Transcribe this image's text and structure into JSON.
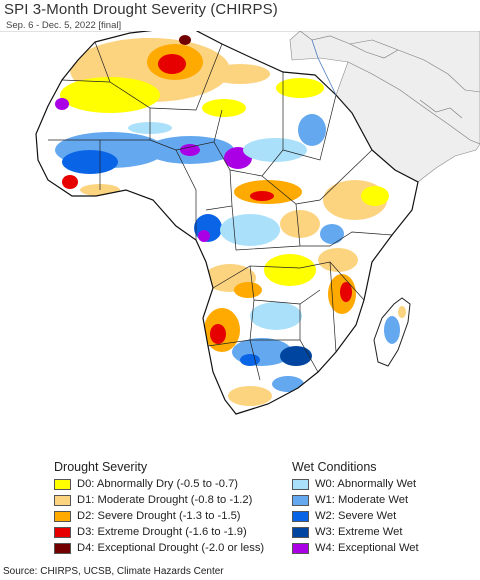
{
  "header": {
    "title": "SPI 3-Month Drought Severity (CHIRPS)",
    "period": "Sep. 6 - Dec. 5, 2022 [final]"
  },
  "map": {
    "region": "Africa",
    "land_color": "#ffffff",
    "ocean_color": "#ffffff",
    "no_data_color": "#efeeee",
    "border_color": "#222222"
  },
  "legend": {
    "drought": {
      "heading": "Drought Severity",
      "items": [
        {
          "label": "D0: Abnormally Dry (-0.5 to -0.7)",
          "color": "#ffff00"
        },
        {
          "label": "D1: Moderate Drought (-0.8 to -1.2)",
          "color": "#fcd37f"
        },
        {
          "label": "D2: Severe Drought (-1.3 to -1.5)",
          "color": "#ffaa00"
        },
        {
          "label": "D3: Extreme Drought (-1.6 to -1.9)",
          "color": "#e60000"
        },
        {
          "label": "D4: Exceptional Drought (-2.0 or less)",
          "color": "#730000"
        }
      ]
    },
    "wet": {
      "heading": "Wet Conditions",
      "items": [
        {
          "label": "W0: Abnormally Wet",
          "color": "#aae0fa"
        },
        {
          "label": "W1: Moderate Wet",
          "color": "#64a8f0"
        },
        {
          "label": "W2: Severe Wet",
          "color": "#0a64e6"
        },
        {
          "label": "W3: Extreme Wet",
          "color": "#0046a0"
        },
        {
          "label": "W4: Exceptional Wet",
          "color": "#aa00e6"
        }
      ]
    }
  },
  "footer": {
    "source": "Source: CHIRPS, UCSB, Climate Hazards Center"
  }
}
